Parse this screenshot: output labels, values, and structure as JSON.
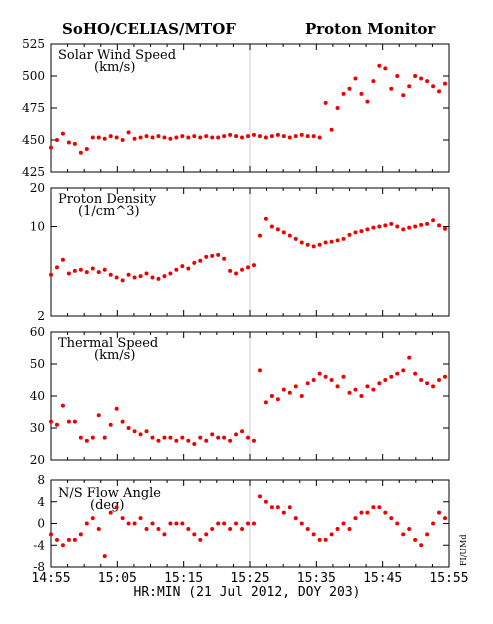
{
  "header": {
    "left_title": "SoHO/CELIAS/MTOF",
    "right_title": "Proton Monitor"
  },
  "xaxis": {
    "label": "HR:MIN (21 Jul 2012, DOY 203)",
    "ticks": [
      "14:55",
      "15:05",
      "15:15",
      "15:25",
      "15:35",
      "15:45",
      "15:55"
    ]
  },
  "side_note": "FI/UMd",
  "colors": {
    "points": "#ee0000",
    "frame": "#000000",
    "divider": "#cccccc"
  },
  "chart_data": [
    {
      "type": "scatter",
      "label": "Solar Wind Speed",
      "unit": "(km/s)",
      "ylim": [
        425,
        525
      ],
      "yticks": [
        425,
        450,
        475,
        500,
        525
      ],
      "xlim_min": [
        0,
        60
      ],
      "x": [
        0,
        0.9,
        1.8,
        2.7,
        3.6,
        4.5,
        5.4,
        6.3,
        7.2,
        8.1,
        9,
        9.9,
        10.8,
        11.7,
        12.6,
        13.5,
        14.4,
        15.3,
        16.2,
        17.1,
        18,
        18.9,
        19.8,
        20.7,
        21.6,
        22.5,
        23.4,
        24.3,
        25.2,
        26.1,
        27,
        27.9,
        28.8,
        29.7,
        30.6,
        31.5,
        32.4,
        33.3,
        34.2,
        35.1,
        36,
        36.9,
        37.8,
        38.7,
        39.6,
        40.5,
        41.4,
        42.3,
        43.2,
        44.1,
        45,
        45.9,
        46.8,
        47.7,
        48.6,
        49.5,
        50.4,
        51.3,
        52.2,
        53.1,
        54,
        54.9,
        55.8,
        56.7,
        57.6,
        58.5,
        59.4
      ],
      "y": [
        444,
        450,
        455,
        448,
        447,
        440,
        443,
        452,
        452,
        451,
        453,
        452,
        450,
        456,
        451,
        452,
        453,
        452,
        453,
        452,
        451,
        452,
        453,
        452,
        453,
        452,
        453,
        452,
        452,
        453,
        454,
        453,
        452,
        453,
        454,
        453,
        452,
        453,
        454,
        453,
        452,
        453,
        454,
        453,
        453,
        452,
        479,
        458,
        475,
        486,
        490,
        498,
        486,
        480,
        496,
        508,
        506,
        490,
        500,
        485,
        492,
        500,
        498,
        496,
        492,
        488,
        494
      ]
    },
    {
      "type": "scatter",
      "label": "Proton Density",
      "unit": "(1/cm^3)",
      "scale": "log",
      "ylim": [
        2,
        20
      ],
      "yticks": [
        2,
        10,
        20
      ],
      "xlim_min": [
        0,
        60
      ],
      "x": [
        0,
        0.9,
        1.8,
        2.7,
        3.6,
        4.5,
        5.4,
        6.3,
        7.2,
        8.1,
        9,
        9.9,
        10.8,
        11.7,
        12.6,
        13.5,
        14.4,
        15.3,
        16.2,
        17.1,
        18,
        18.9,
        19.8,
        20.7,
        21.6,
        22.5,
        23.4,
        24.3,
        25.2,
        26.1,
        27,
        27.9,
        28.8,
        29.7,
        30.6,
        31.5,
        32.4,
        33.3,
        34.2,
        35.1,
        36,
        36.9,
        37.8,
        38.7,
        39.6,
        40.5,
        41.4,
        42.3,
        43.2,
        44.1,
        45,
        45.9,
        46.8,
        47.7,
        48.6,
        49.5,
        50.4,
        51.3,
        52.2,
        53.1,
        54,
        54.9,
        55.8,
        56.7,
        57.6,
        58.5,
        59.4
      ],
      "y": [
        4.2,
        4.8,
        5.5,
        4.3,
        4.5,
        4.6,
        4.4,
        4.7,
        4.4,
        4.6,
        4.2,
        4.0,
        3.8,
        4.2,
        4.0,
        4.1,
        4.3,
        4.0,
        3.9,
        4.1,
        4.3,
        4.6,
        4.9,
        4.7,
        5.2,
        5.4,
        5.8,
        5.9,
        6.0,
        5.6,
        4.5,
        4.3,
        4.6,
        4.8,
        5.0,
        8.5,
        11.5,
        10.0,
        9.5,
        9.0,
        8.5,
        8.0,
        7.5,
        7.2,
        7.0,
        7.2,
        7.5,
        7.6,
        7.8,
        8.0,
        8.6,
        9.0,
        9.2,
        9.5,
        9.8,
        10.0,
        10.2,
        10.5,
        10.0,
        9.5,
        9.8,
        10.0,
        10.3,
        10.5,
        11.2,
        10.2,
        9.6
      ]
    },
    {
      "type": "scatter",
      "label": "Thermal Speed",
      "unit": "(km/s)",
      "ylim": [
        20,
        60
      ],
      "yticks": [
        20,
        30,
        40,
        50,
        60
      ],
      "xlim_min": [
        0,
        60
      ],
      "x": [
        0,
        0.9,
        1.8,
        2.7,
        3.6,
        4.5,
        5.4,
        6.3,
        7.2,
        8.1,
        9,
        9.9,
        10.8,
        11.7,
        12.6,
        13.5,
        14.4,
        15.3,
        16.2,
        17.1,
        18,
        18.9,
        19.8,
        20.7,
        21.6,
        22.5,
        23.4,
        24.3,
        25.2,
        26.1,
        27,
        27.9,
        28.8,
        29.7,
        30.6,
        31.5,
        32.4,
        33.3,
        34.2,
        35.1,
        36,
        36.9,
        37.8,
        38.7,
        39.6,
        40.5,
        41.4,
        42.3,
        43.2,
        44.1,
        45,
        45.9,
        46.8,
        47.7,
        48.6,
        49.5,
        50.4,
        51.3,
        52.2,
        53.1,
        54,
        54.9,
        55.8,
        56.7,
        57.6,
        58.5,
        59.4
      ],
      "y": [
        32,
        31,
        37,
        32,
        32,
        27,
        26,
        27,
        34,
        27,
        31,
        36,
        32,
        30,
        29,
        28,
        29,
        27,
        26,
        27,
        27,
        26,
        27,
        26,
        25,
        27,
        26,
        28,
        27,
        27,
        26,
        28,
        29,
        27,
        26,
        48,
        38,
        40,
        39,
        42,
        41,
        43,
        40,
        44,
        45,
        47,
        46,
        45,
        43,
        46,
        41,
        42,
        40,
        43,
        42,
        44,
        45,
        46,
        47,
        48,
        52,
        47,
        45,
        44,
        43,
        45,
        46
      ]
    },
    {
      "type": "scatter",
      "label": "N/S Flow Angle",
      "unit": "(deg)",
      "ylim": [
        -8,
        8
      ],
      "yticks": [
        -8,
        -4,
        0,
        4,
        8
      ],
      "xlim_min": [
        0,
        60
      ],
      "x": [
        0,
        0.9,
        1.8,
        2.7,
        3.6,
        4.5,
        5.4,
        6.3,
        7.2,
        8.1,
        9,
        9.9,
        10.8,
        11.7,
        12.6,
        13.5,
        14.4,
        15.3,
        16.2,
        17.1,
        18,
        18.9,
        19.8,
        20.7,
        21.6,
        22.5,
        23.4,
        24.3,
        25.2,
        26.1,
        27,
        27.9,
        28.8,
        29.7,
        30.6,
        31.5,
        32.4,
        33.3,
        34.2,
        35.1,
        36,
        36.9,
        37.8,
        38.7,
        39.6,
        40.5,
        41.4,
        42.3,
        43.2,
        44.1,
        45,
        45.9,
        46.8,
        47.7,
        48.6,
        49.5,
        50.4,
        51.3,
        52.2,
        53.1,
        54,
        54.9,
        55.8,
        56.7,
        57.6,
        58.5,
        59.4
      ],
      "y": [
        -2,
        -3,
        -4,
        -3,
        -3,
        -2,
        0,
        1,
        -1,
        -6,
        2,
        3,
        1,
        0,
        0,
        1,
        -1,
        0,
        -1,
        -2,
        0,
        0,
        0,
        -1,
        -2,
        -3,
        -2,
        -1,
        0,
        0,
        -1,
        0,
        -1,
        0,
        0,
        5,
        4,
        3,
        3,
        2,
        3,
        1,
        0,
        -1,
        -2,
        -3,
        -3,
        -2,
        -1,
        0,
        -1,
        1,
        2,
        2,
        3,
        3,
        2,
        1,
        0,
        -2,
        -1,
        -3,
        -4,
        -2,
        0,
        2,
        1
      ]
    }
  ]
}
